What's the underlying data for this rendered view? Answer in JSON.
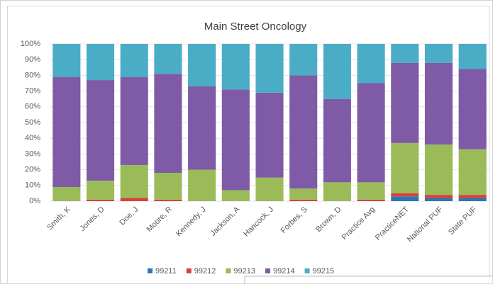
{
  "chart_data": {
    "type": "stacked_bar",
    "title": "Main Street Oncology",
    "categories": [
      "Smith, K",
      "Jones, D",
      "Doe, J",
      "Moore, R",
      "Kennedy, J",
      "Jackson, A",
      "Hancock, J",
      "Forbes, S",
      "Brown, D",
      "Practice Avg",
      "PracticeNET",
      "National PUF",
      "State PUF"
    ],
    "series": [
      {
        "name": "99211",
        "color": "#2e75b6",
        "values": [
          0,
          0,
          0,
          0,
          0,
          0,
          0,
          0,
          0,
          0,
          3,
          2,
          2
        ]
      },
      {
        "name": "99212",
        "color": "#d9413a",
        "values": [
          0,
          1,
          2,
          1,
          0,
          0,
          0,
          1,
          0,
          1,
          2,
          2,
          2
        ]
      },
      {
        "name": "99213",
        "color": "#9bbb59",
        "values": [
          9,
          12,
          21,
          17,
          20,
          7,
          15,
          7,
          12,
          11,
          32,
          32,
          29
        ]
      },
      {
        "name": "99214",
        "color": "#7f5aa6",
        "values": [
          70,
          64,
          56,
          63,
          53,
          64,
          54,
          72,
          53,
          63,
          51,
          52,
          51
        ]
      },
      {
        "name": "99215",
        "color": "#4bacc6",
        "values": [
          21,
          23,
          21,
          19,
          27,
          29,
          31,
          20,
          35,
          25,
          12,
          12,
          16
        ]
      }
    ],
    "ylim": [
      0,
      100
    ],
    "yticks": [
      {
        "value": 0,
        "label": "0%"
      },
      {
        "value": 10,
        "label": "10%"
      },
      {
        "value": 20,
        "label": "20%"
      },
      {
        "value": 30,
        "label": "30%"
      },
      {
        "value": 40,
        "label": "40%"
      },
      {
        "value": 50,
        "label": "50%"
      },
      {
        "value": 60,
        "label": "60%"
      },
      {
        "value": 70,
        "label": "70%"
      },
      {
        "value": 80,
        "label": "80%"
      },
      {
        "value": 90,
        "label": "90%"
      },
      {
        "value": 100,
        "label": "100%"
      }
    ],
    "grid": true,
    "legend": "bottom"
  }
}
